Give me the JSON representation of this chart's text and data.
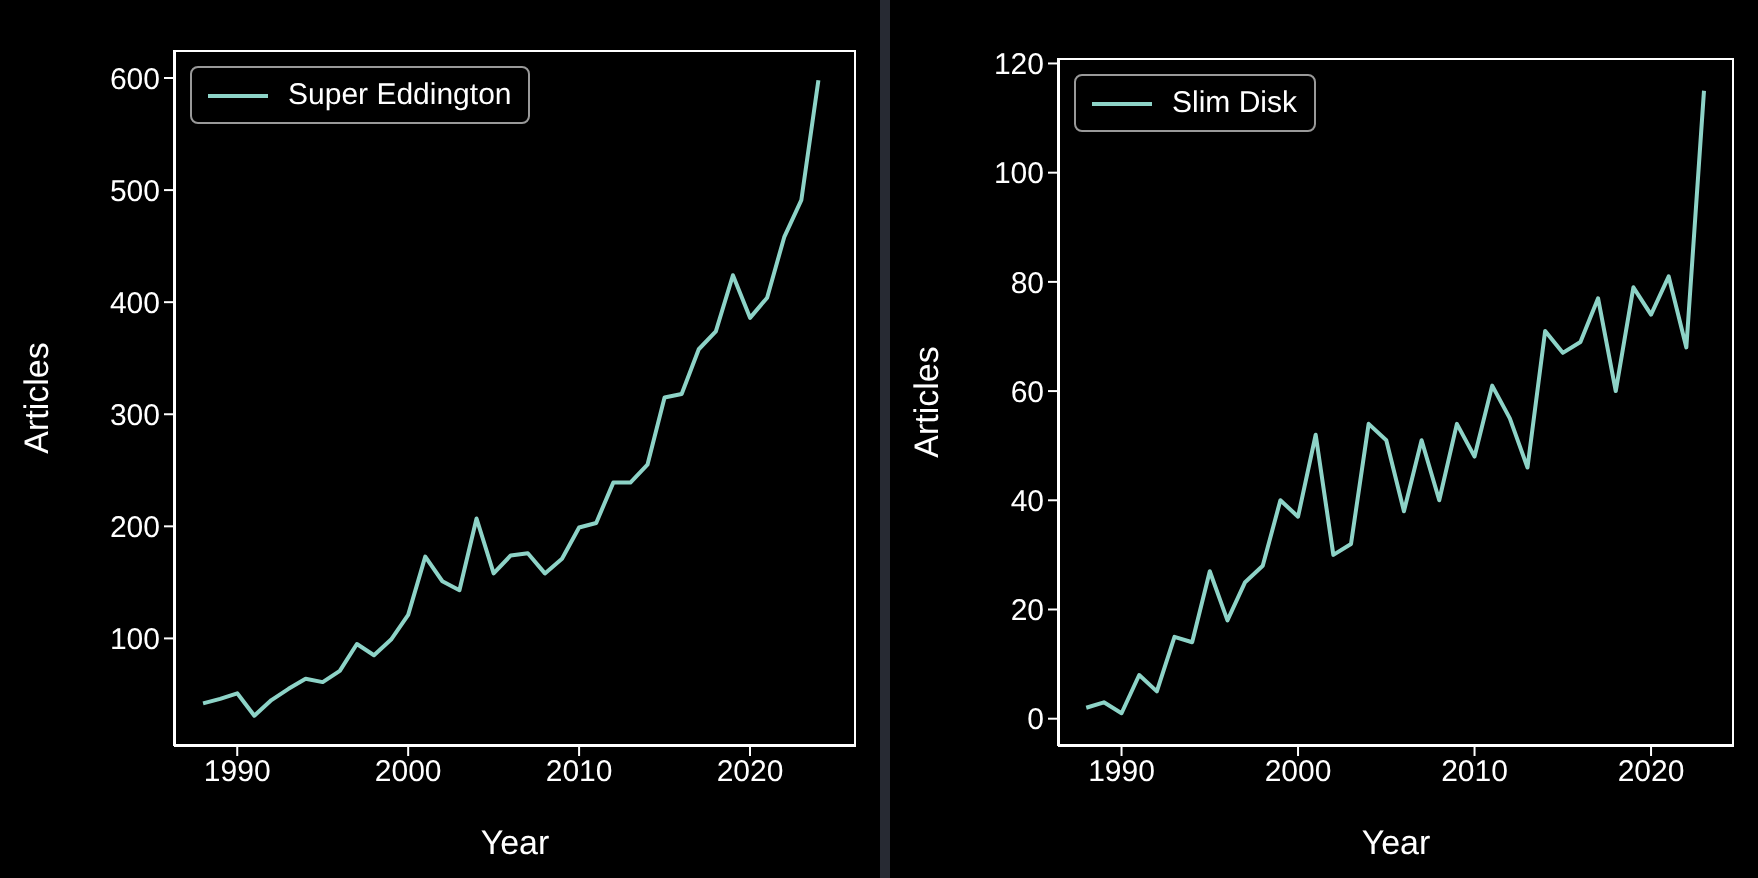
{
  "chart_data": [
    {
      "type": "line",
      "xlabel": "Year",
      "ylabel": "Articles",
      "legend": "top left",
      "x": [
        1988,
        1989,
        1990,
        1991,
        1992,
        1993,
        1994,
        1995,
        1996,
        1997,
        1998,
        1999,
        2000,
        2001,
        2002,
        2003,
        2004,
        2005,
        2006,
        2007,
        2008,
        2009,
        2010,
        2011,
        2012,
        2013,
        2014,
        2015,
        2016,
        2017,
        2018,
        2019,
        2020,
        2021,
        2022,
        2023,
        2024
      ],
      "series": [
        {
          "name": "Super Eddington",
          "color": "#8dd3c7",
          "values": [
            42,
            46,
            51,
            31,
            45,
            55,
            64,
            61,
            71,
            95,
            85,
            99,
            121,
            173,
            151,
            143,
            207,
            158,
            174,
            176,
            158,
            171,
            199,
            203,
            239,
            239,
            255,
            315,
            318,
            358,
            374,
            424,
            386,
            404,
            458,
            491,
            598
          ]
        }
      ],
      "xlim": [
        1986.3,
        2026.2
      ],
      "xticks": [
        1990,
        2000,
        2010,
        2020
      ],
      "ylim": [
        4,
        625
      ],
      "yticks": [
        100,
        200,
        300,
        400,
        500,
        600
      ]
    },
    {
      "type": "line",
      "xlabel": "Year",
      "ylabel": "Articles",
      "legend": "top left",
      "x": [
        1988,
        1989,
        1990,
        1991,
        1992,
        1993,
        1994,
        1995,
        1996,
        1997,
        1998,
        1999,
        2000,
        2001,
        2002,
        2003,
        2004,
        2005,
        2006,
        2007,
        2008,
        2009,
        2010,
        2011,
        2012,
        2013,
        2014,
        2015,
        2016,
        2017,
        2018,
        2019,
        2020,
        2021,
        2022,
        2023
      ],
      "series": [
        {
          "name": "Slim Disk",
          "color": "#8dd3c7",
          "values": [
            2,
            3,
            1,
            8,
            5,
            15,
            14,
            27,
            18,
            25,
            28,
            40,
            37,
            52,
            30,
            32,
            54,
            51,
            38,
            51,
            40,
            54,
            48,
            61,
            55,
            46,
            71,
            67,
            69,
            77,
            60,
            79,
            74,
            81,
            68,
            115
          ]
        }
      ],
      "xlim": [
        1986.4,
        2024.7
      ],
      "xticks": [
        1990,
        2000,
        2010,
        2020
      ],
      "ylim": [
        -5,
        121
      ],
      "yticks": [
        0,
        20,
        40,
        60,
        80,
        100,
        120
      ]
    }
  ]
}
